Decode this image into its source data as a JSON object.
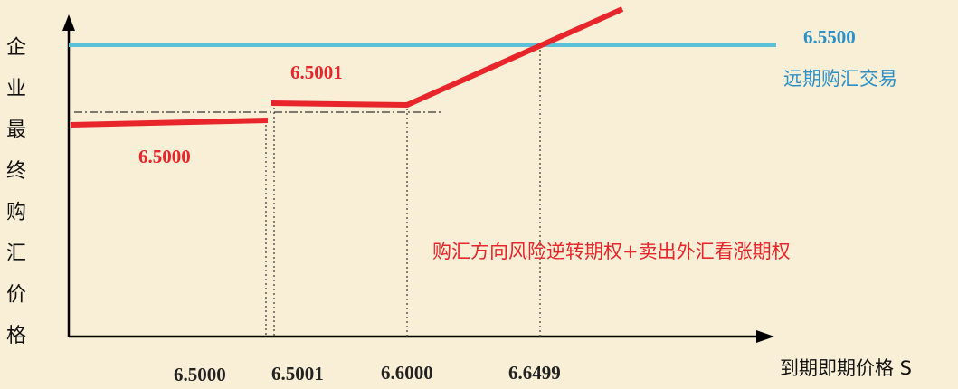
{
  "axes": {
    "y_label": "企业最终购汇价格",
    "x_label": "到期即期价格 S"
  },
  "x_ticks": [
    "6.5000",
    "6.5001",
    "6.6000",
    "6.6499"
  ],
  "annotations": {
    "low_value": "6.5000",
    "mid_value": "6.5001",
    "forward_value": "6.5500",
    "forward_label": "远期购汇交易",
    "strategy_label": "购汇方向风险逆转期权+卖出外汇看涨期权"
  },
  "colors": {
    "background": "#f9efd6",
    "strategy_line": "#e8252b",
    "forward_line": "#5bc0d8",
    "forward_text": "#2b8fc8",
    "axis": "#000000"
  }
}
